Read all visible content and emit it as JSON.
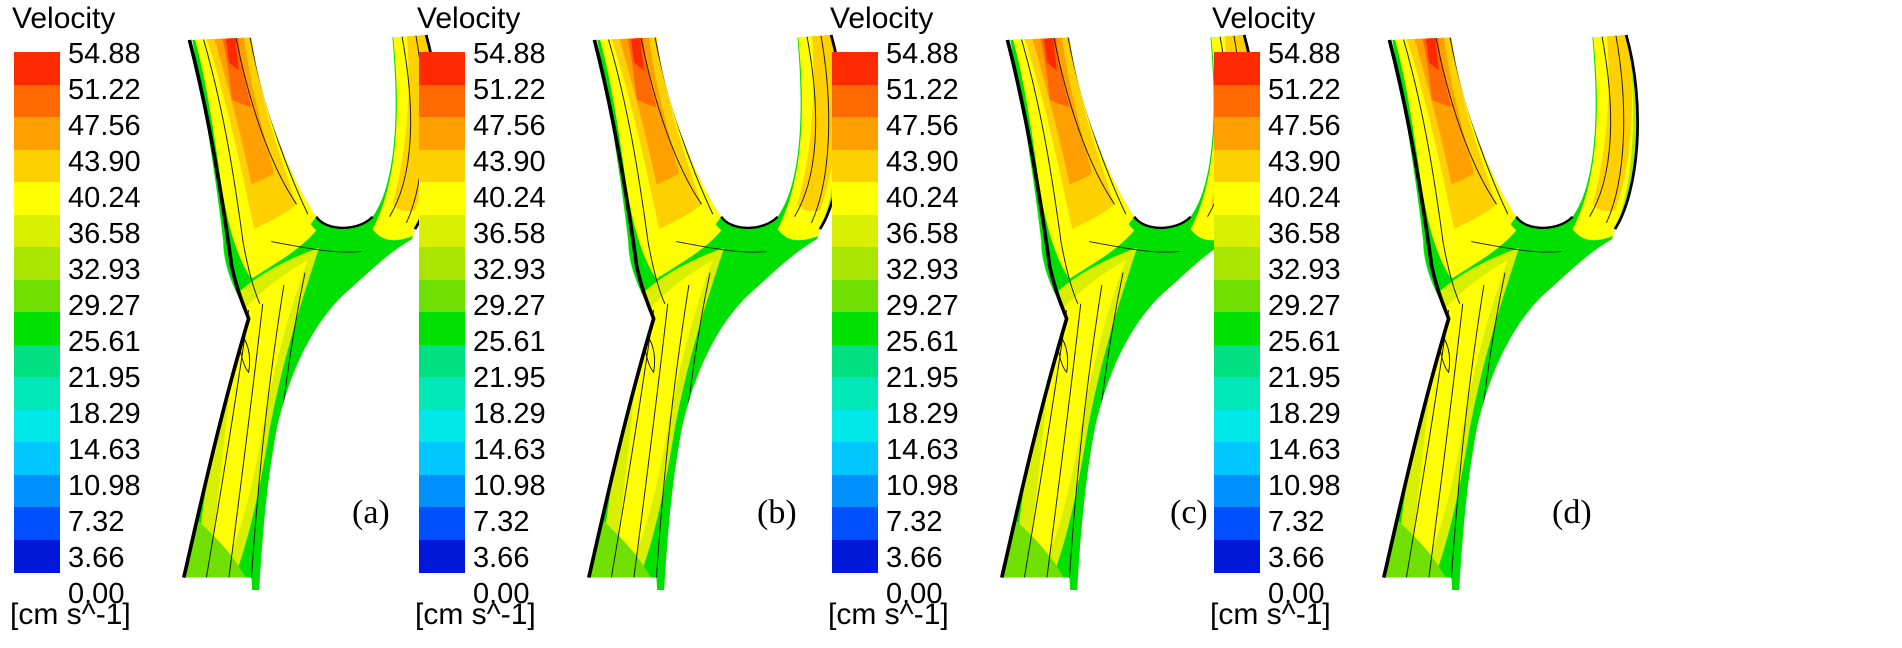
{
  "legend": {
    "title": "Velocity",
    "units": "[cm s^-1]",
    "ticks": [
      "54.88",
      "51.22",
      "47.56",
      "43.90",
      "40.24",
      "36.58",
      "32.93",
      "29.27",
      "25.61",
      "21.95",
      "18.29",
      "14.63",
      "10.98",
      "7.32",
      "3.66",
      "0.00"
    ],
    "colors": [
      "#ff2a00",
      "#ff6a00",
      "#ffa000",
      "#ffd000",
      "#ffff00",
      "#d8f000",
      "#a8e600",
      "#70e000",
      "#00e000",
      "#00e080",
      "#00e8b8",
      "#00e8e8",
      "#00c8ff",
      "#0090ff",
      "#0050ff",
      "#0018d8"
    ]
  },
  "panels": [
    {
      "label": "(a)"
    },
    {
      "label": "(b)"
    },
    {
      "label": "(c)"
    },
    {
      "label": "(d)"
    }
  ]
}
